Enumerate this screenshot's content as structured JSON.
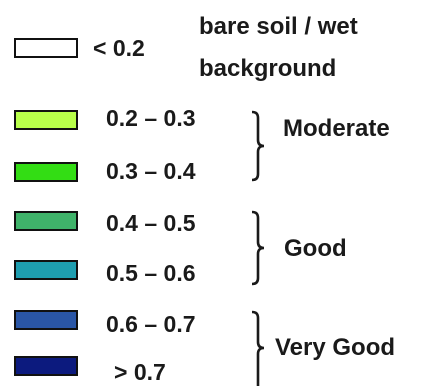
{
  "legend": {
    "bare": {
      "range": "< 0.2",
      "label_line1": "bare soil / wet",
      "label_line2": "background",
      "color": "#ffffff"
    },
    "items": [
      {
        "range": "0.2 – 0.3",
        "color": "#b8ff4a"
      },
      {
        "range": "0.3 – 0.4",
        "color": "#33dd14"
      },
      {
        "range": "0.4 – 0.5",
        "color": "#3fb36a"
      },
      {
        "range": "0.5 – 0.6",
        "color": "#1e9eb0"
      },
      {
        "range": "0.6 – 0.7",
        "color": "#2a56a6"
      },
      {
        "range": "> 0.7",
        "color": "#0c1a7e"
      }
    ],
    "groups": [
      {
        "label": "Moderate"
      },
      {
        "label": "Good"
      },
      {
        "label": "Very Good"
      }
    ]
  }
}
